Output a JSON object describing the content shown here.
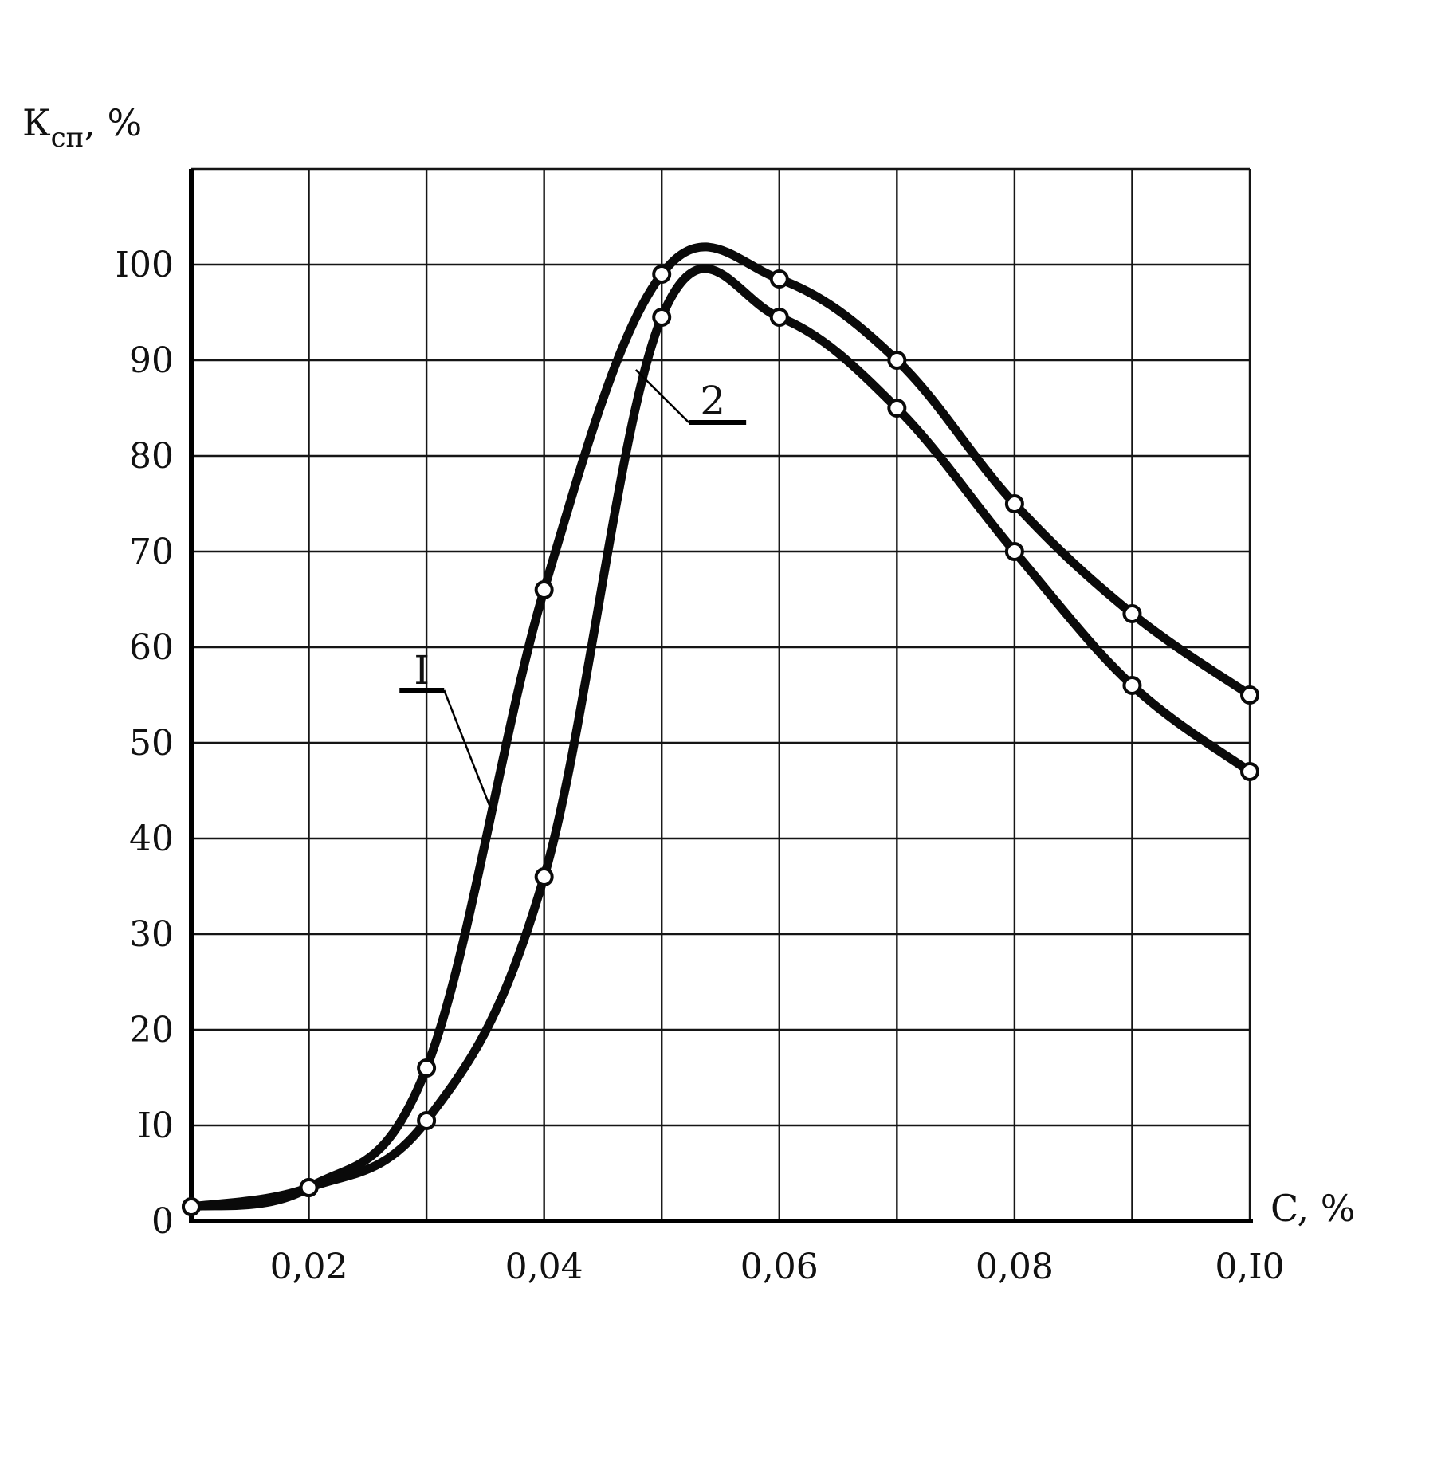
{
  "chart_data": {
    "type": "line",
    "xlabel": "C, %",
    "ylabel": {
      "main": "К",
      "sub": "сп",
      "suffix": ", %"
    },
    "xlim": [
      0.01,
      0.1
    ],
    "ylim": [
      0,
      110
    ],
    "xgrid": [
      0.01,
      0.02,
      0.03,
      0.04,
      0.05,
      0.06,
      0.07,
      0.08,
      0.09,
      0.1
    ],
    "ygrid": [
      0,
      10,
      20,
      30,
      40,
      50,
      60,
      70,
      80,
      90,
      100,
      110
    ],
    "xticks": [
      {
        "value": 0.02,
        "label": "0,02"
      },
      {
        "value": 0.04,
        "label": "0,04"
      },
      {
        "value": 0.06,
        "label": "0,06"
      },
      {
        "value": 0.08,
        "label": "0,08"
      },
      {
        "value": 0.1,
        "label": "0,I0"
      }
    ],
    "yticks": [
      {
        "value": 0,
        "label": "0"
      },
      {
        "value": 10,
        "label": "I0"
      },
      {
        "value": 20,
        "label": "20"
      },
      {
        "value": 30,
        "label": "30"
      },
      {
        "value": 40,
        "label": "40"
      },
      {
        "value": 50,
        "label": "50"
      },
      {
        "value": 60,
        "label": "60"
      },
      {
        "value": 70,
        "label": "70"
      },
      {
        "value": 80,
        "label": "80"
      },
      {
        "value": 90,
        "label": "90"
      },
      {
        "value": 100,
        "label": "I00"
      }
    ],
    "grid": true,
    "series": [
      {
        "name": "I",
        "points": [
          {
            "x": 0.01,
            "y": 1.5
          },
          {
            "x": 0.02,
            "y": 3.5
          },
          {
            "x": 0.03,
            "y": 16
          },
          {
            "x": 0.04,
            "y": 66
          },
          {
            "x": 0.05,
            "y": 99
          },
          {
            "x": 0.06,
            "y": 98.5
          },
          {
            "x": 0.07,
            "y": 90
          },
          {
            "x": 0.08,
            "y": 75
          },
          {
            "x": 0.09,
            "y": 63.5
          },
          {
            "x": 0.1,
            "y": 55
          }
        ]
      },
      {
        "name": "2",
        "points": [
          {
            "x": 0.01,
            "y": 1.5
          },
          {
            "x": 0.02,
            "y": 3.5
          },
          {
            "x": 0.03,
            "y": 10.5
          },
          {
            "x": 0.04,
            "y": 36
          },
          {
            "x": 0.05,
            "y": 94.5
          },
          {
            "x": 0.06,
            "y": 94.5
          },
          {
            "x": 0.07,
            "y": 85
          },
          {
            "x": 0.08,
            "y": 70
          },
          {
            "x": 0.09,
            "y": 56
          },
          {
            "x": 0.1,
            "y": 47
          }
        ]
      }
    ],
    "annotations": [
      {
        "text": "I",
        "series": "I"
      },
      {
        "text": "2",
        "series": "2"
      }
    ],
    "colors": {
      "line": "#0a0a0a",
      "grid": "#151515",
      "marker_fill": "#ffffff"
    }
  }
}
